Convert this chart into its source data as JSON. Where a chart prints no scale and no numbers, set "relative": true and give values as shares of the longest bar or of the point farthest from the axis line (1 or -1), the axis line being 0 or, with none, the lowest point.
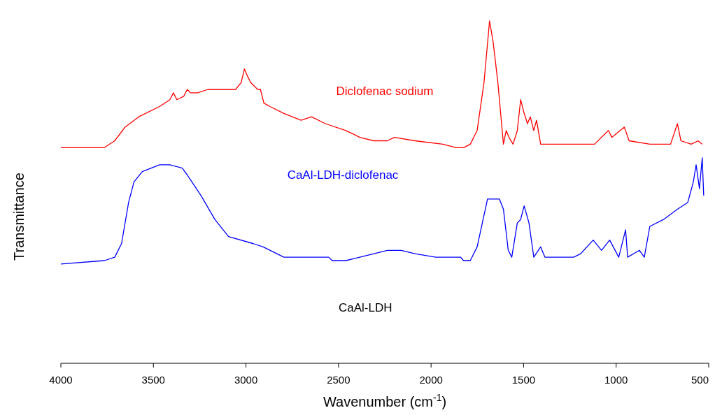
{
  "chart_data": {
    "type": "line",
    "relative": true,
    "xlabel": "Wavenumber (cm$^{-1}$)",
    "ylabel": "Transmittance",
    "xlim": [
      4000,
      500
    ],
    "xticks": [
      4000,
      3500,
      3000,
      2500,
      2000,
      1500,
      1000,
      500
    ],
    "grid": false,
    "legend": false,
    "annotations": [
      "CaAl-LDH"
    ],
    "series": [
      {
        "name": "Diclofenac sodium",
        "color": "#ff0000",
        "x": [
          4000,
          3765,
          3709,
          3653,
          3579,
          3467,
          3411,
          3392,
          3373,
          3336,
          3317,
          3299,
          3261,
          3206,
          3131,
          3056,
          3026,
          3008,
          2993,
          2974,
          2937,
          2922,
          2903,
          2870,
          2795,
          2702,
          2646,
          2571,
          2460,
          2422,
          2385,
          2310,
          2236,
          2198,
          2087,
          1937,
          1863,
          1825,
          1788,
          1751,
          1714,
          1684,
          1665,
          1639,
          1609,
          1594,
          1579,
          1557,
          1534,
          1516,
          1497,
          1479,
          1464,
          1445,
          1430,
          1408,
          1341,
          1285,
          1229,
          1117,
          1042,
          1023,
          956,
          930,
          818,
          706,
          669,
          650,
          595,
          557,
          535
        ],
        "values": [
          0.63,
          0.63,
          0.65,
          0.69,
          0.72,
          0.75,
          0.77,
          0.79,
          0.77,
          0.78,
          0.8,
          0.79,
          0.79,
          0.8,
          0.8,
          0.8,
          0.82,
          0.86,
          0.84,
          0.82,
          0.8,
          0.8,
          0.76,
          0.75,
          0.73,
          0.71,
          0.72,
          0.7,
          0.68,
          0.67,
          0.66,
          0.65,
          0.65,
          0.66,
          0.65,
          0.64,
          0.63,
          0.63,
          0.64,
          0.68,
          0.82,
          1,
          0.94,
          0.82,
          0.64,
          0.68,
          0.66,
          0.64,
          0.68,
          0.77,
          0.73,
          0.7,
          0.72,
          0.68,
          0.71,
          0.64,
          0.64,
          0.64,
          0.64,
          0.64,
          0.68,
          0.66,
          0.69,
          0.65,
          0.64,
          0.64,
          0.7,
          0.65,
          0.64,
          0.65,
          0.64
        ]
      },
      {
        "name": "CaAl-LDH-diclofenac",
        "color": "#0000ff",
        "x": [
          4000,
          3765,
          3709,
          3672,
          3634,
          3605,
          3560,
          3467,
          3411,
          3344,
          3317,
          3243,
          3168,
          3094,
          2963,
          2907,
          2795,
          2646,
          2553,
          2534,
          2460,
          2385,
          2236,
          2161,
          2087,
          1975,
          1848,
          1840,
          1825,
          1788,
          1751,
          1695,
          1676,
          1631,
          1609,
          1583,
          1564,
          1534,
          1516,
          1497,
          1471,
          1445,
          1408,
          1385,
          1341,
          1229,
          1192,
          1124,
          1079,
          1035,
          986,
          949,
          938,
          874,
          848,
          818,
          744,
          669,
          613,
          583,
          568,
          550,
          535,
          527
        ],
        "values": [
          0.29,
          0.3,
          0.31,
          0.35,
          0.47,
          0.53,
          0.56,
          0.58,
          0.58,
          0.57,
          0.55,
          0.49,
          0.42,
          0.37,
          0.35,
          0.34,
          0.31,
          0.31,
          0.31,
          0.3,
          0.3,
          0.31,
          0.33,
          0.33,
          0.32,
          0.31,
          0.31,
          0.31,
          0.3,
          0.3,
          0.34,
          0.48,
          0.48,
          0.48,
          0.45,
          0.33,
          0.31,
          0.41,
          0.42,
          0.46,
          0.41,
          0.31,
          0.34,
          0.31,
          0.31,
          0.31,
          0.32,
          0.36,
          0.33,
          0.36,
          0.31,
          0.39,
          0.31,
          0.33,
          0.31,
          0.4,
          0.42,
          0.45,
          0.47,
          0.53,
          0.58,
          0.51,
          0.6,
          0.49
        ]
      }
    ]
  }
}
